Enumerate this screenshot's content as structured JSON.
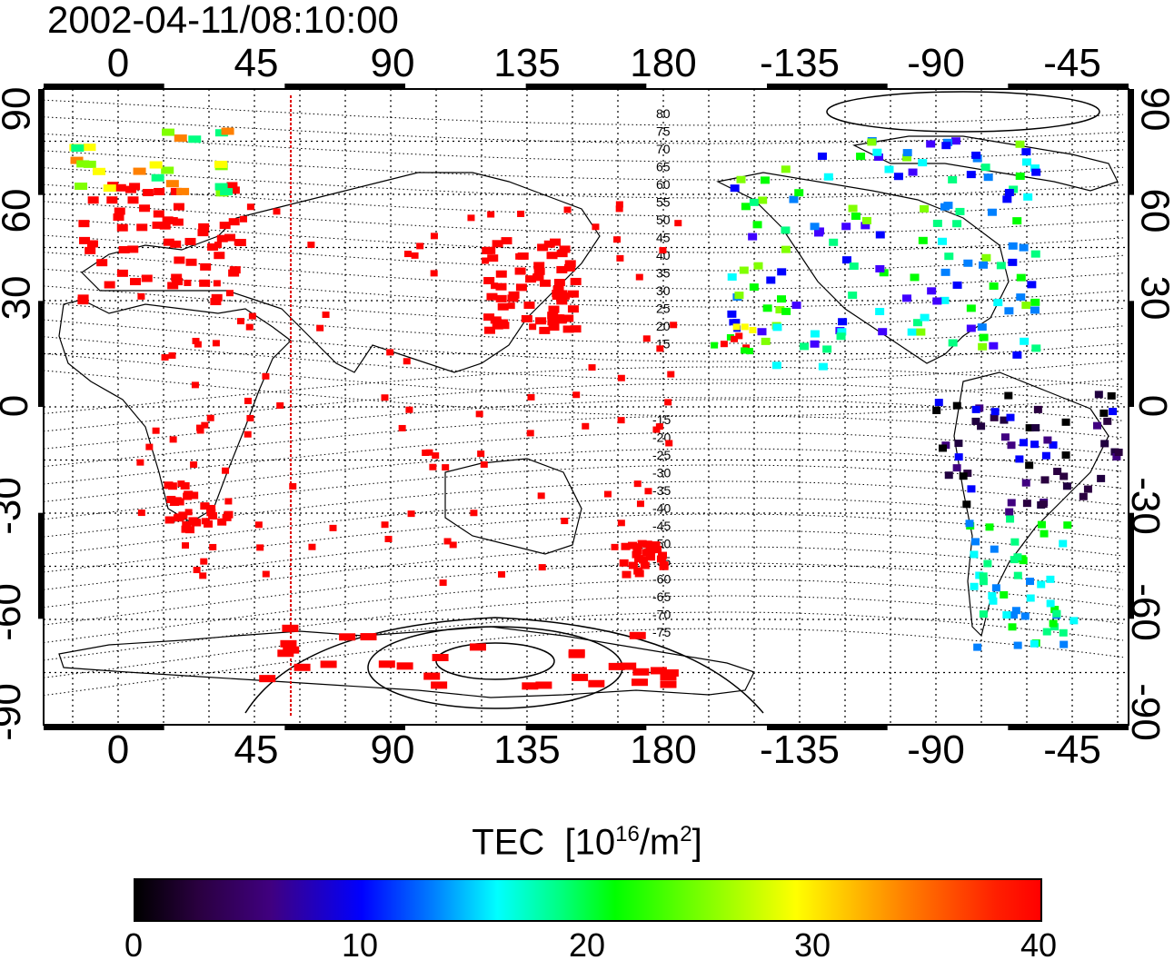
{
  "timestamp": "2002-04-11/08:10:00",
  "map": {
    "lon_ticks": [
      "0",
      "45",
      "90",
      "135",
      "180",
      "-135",
      "-90",
      "-45"
    ],
    "lat_ticks": [
      "90",
      "60",
      "30",
      "0",
      "-30",
      "-60",
      "-90"
    ],
    "contour_labels": [
      "80",
      "75",
      "70",
      "65",
      "60",
      "55",
      "50",
      "45",
      "40",
      "35",
      "30",
      "25",
      "20",
      "15",
      "-15",
      "-20",
      "-25",
      "-30",
      "-35",
      "-40",
      "-45",
      "-50",
      "-55",
      "-60",
      "-65",
      "-70",
      "-75"
    ],
    "sun_meridian_color": "#e00000"
  },
  "colorbar": {
    "title": "TEC",
    "unit_prefix": "[10",
    "unit_exp": "16",
    "unit_mid": "/m",
    "unit_exp2": "2",
    "unit_suffix": "]",
    "tick_labels": [
      "0",
      "10",
      "20",
      "30",
      "40"
    ],
    "colors": [
      "#000000",
      "#400080",
      "#0000ff",
      "#00ffff",
      "#00ff00",
      "#ffff00",
      "#ff8000",
      "#ff0000"
    ]
  }
}
